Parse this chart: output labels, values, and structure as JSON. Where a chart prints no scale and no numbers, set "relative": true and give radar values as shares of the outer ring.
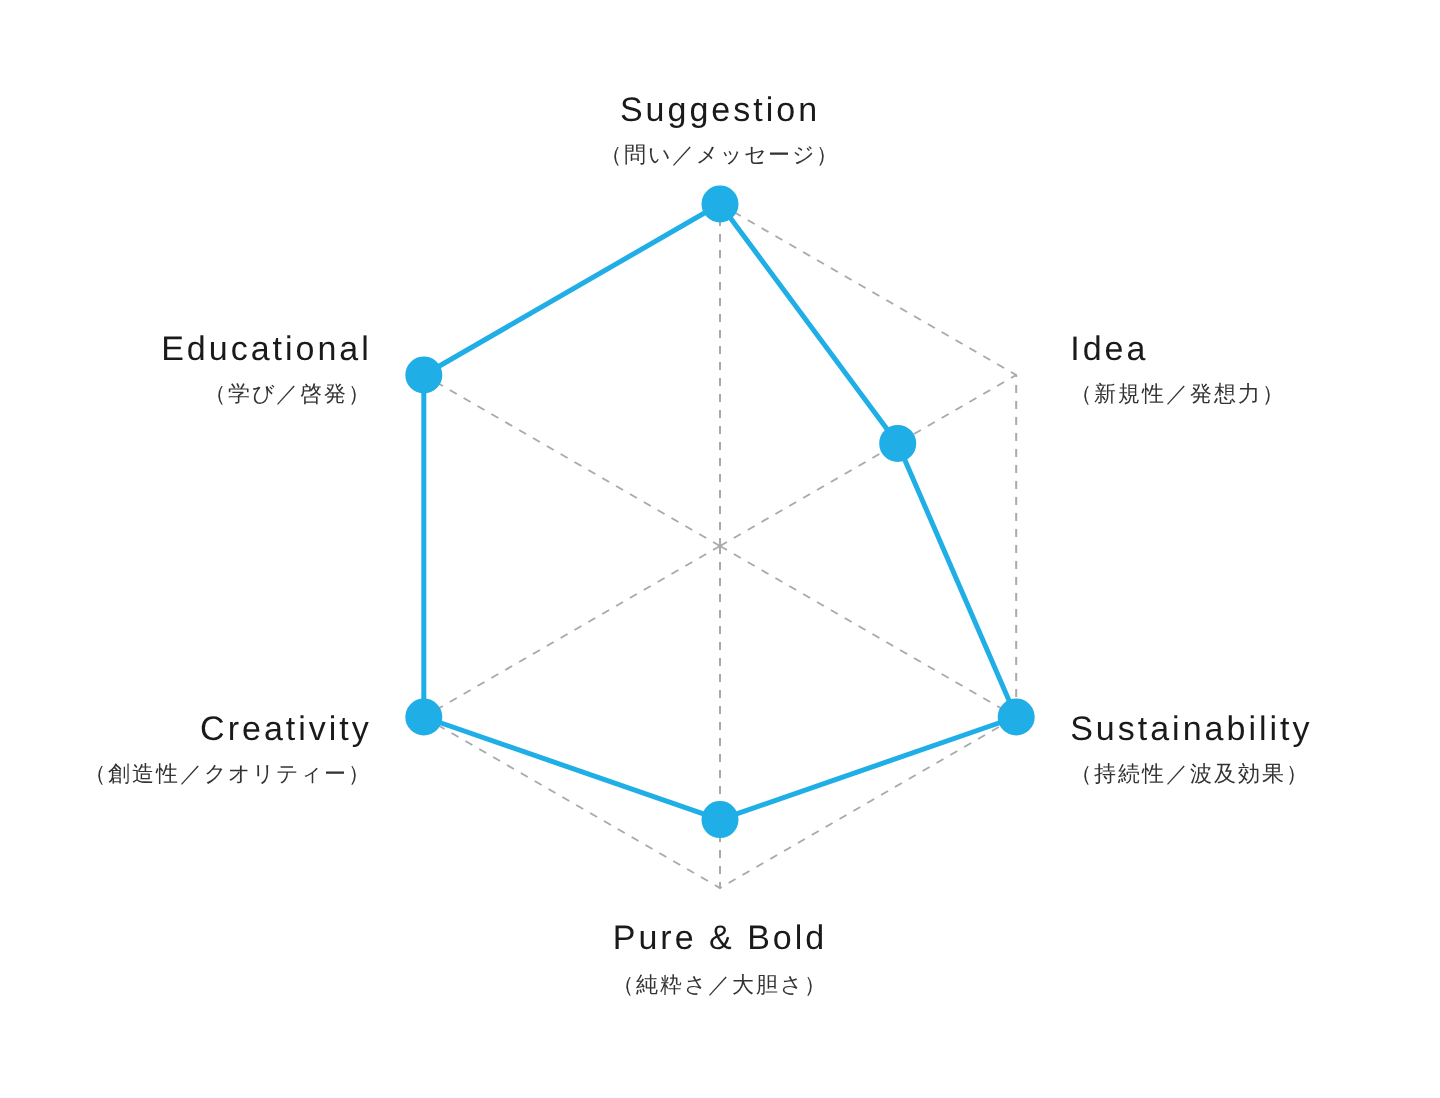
{
  "chart_data": {
    "type": "radar",
    "categories": [
      "Suggestion\n（問い／メッセージ）",
      "Idea\n（新規性／発想力）",
      "Sustainability\n（持続性／波及効果）",
      "Pure & Bold\n（純粋さ／大胆さ）",
      "Creativity\n（創造性／クオリティー）",
      "Educational\n（学び／啓発）"
    ],
    "series": [
      {
        "color": "#20aee6",
        "values": [
          1,
          0.6,
          1,
          0.8,
          1,
          1
        ]
      }
    ],
    "relative": true,
    "grid": true,
    "legend": false,
    "marker": "circle",
    "line_style": "solid"
  }
}
